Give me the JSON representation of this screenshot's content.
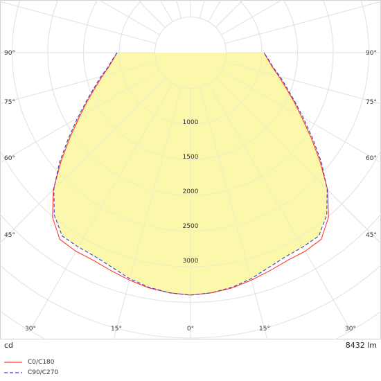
{
  "chart_data": {
    "type": "polar-luminous-intensity",
    "unit_label": "cd",
    "flux_label": "8432 lm",
    "radial_ticks": [
      1000,
      1500,
      2000,
      2500,
      3000
    ],
    "radial_tick_labels": [
      "1000",
      "1500",
      "2000",
      "2500",
      "3000"
    ],
    "angle_labels_side": [
      "90°",
      "75°",
      "60°",
      "45°"
    ],
    "angle_labels_bottom": [
      "30°",
      "15°",
      "0°",
      "15°",
      "30°"
    ],
    "rmax": 3500,
    "series": [
      {
        "name": "C0/C180",
        "color": "#ff3b30",
        "dash": "solid",
        "angles": [
          0,
          5,
          10,
          15,
          20,
          25,
          30,
          35,
          40,
          45,
          50,
          55,
          60,
          65,
          70,
          75,
          80,
          85,
          90
        ],
        "values": [
          3500,
          3480,
          3450,
          3400,
          3350,
          3310,
          3310,
          3290,
          3100,
          2800,
          2440,
          2120,
          1850,
          1640,
          1460,
          1320,
          1200,
          1120,
          1060
        ]
      },
      {
        "name": "C90/C270",
        "color": "#3a3adf",
        "dash": "dashed",
        "angles": [
          0,
          5,
          10,
          15,
          20,
          25,
          30,
          35,
          40,
          45,
          50,
          55,
          60,
          65,
          70,
          75,
          80,
          85,
          90
        ],
        "values": [
          3500,
          3480,
          3440,
          3380,
          3300,
          3250,
          3240,
          3230,
          3060,
          2790,
          2470,
          2150,
          1880,
          1660,
          1480,
          1340,
          1210,
          1130,
          1060
        ]
      }
    ],
    "fill_color": "#fbf7a6"
  },
  "legend": {
    "items": [
      {
        "label": "C0/C180"
      },
      {
        "label": "C90/C270"
      }
    ]
  }
}
